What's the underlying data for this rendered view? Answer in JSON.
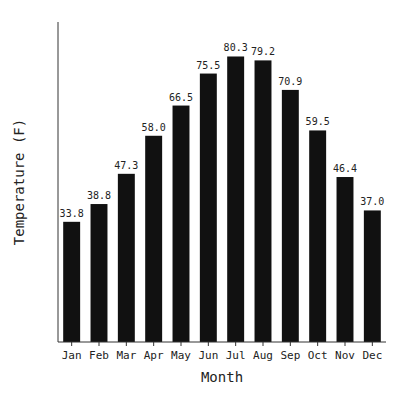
{
  "chart_data": {
    "type": "bar",
    "xlabel": "Month",
    "ylabel": "Temperature (F)",
    "categories": [
      "Jan",
      "Feb",
      "Mar",
      "Apr",
      "May",
      "Jun",
      "Jul",
      "Aug",
      "Sep",
      "Oct",
      "Nov",
      "Dec"
    ],
    "values": [
      33.8,
      38.8,
      47.3,
      58.0,
      66.5,
      75.5,
      80.3,
      79.2,
      70.9,
      59.5,
      46.4,
      37.0
    ],
    "value_labels": [
      "33.8",
      "38.8",
      "47.3",
      "58.0",
      "66.5",
      "75.5",
      "80.3",
      "79.2",
      "70.9",
      "59.5",
      "46.4",
      "37.0"
    ],
    "color": "#111111",
    "ylim": [
      0,
      90
    ],
    "data_labels": true,
    "tick_labels": "x",
    "grid": false
  }
}
